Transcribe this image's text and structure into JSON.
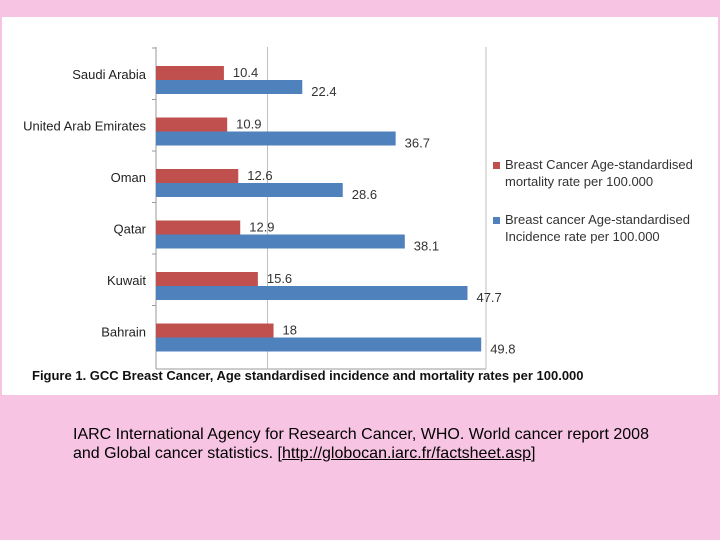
{
  "chart_data": {
    "type": "bar",
    "orientation": "horizontal",
    "categories": [
      "Saudi Arabia",
      "United Arab Emirates",
      "Oman",
      "Qatar",
      "Kuwait",
      "Bahrain"
    ],
    "series": [
      {
        "name": "Breast Cancer Age-standardised mortality rate per 100.000",
        "color": "#c0504d",
        "values": [
          10.4,
          10.9,
          12.6,
          12.9,
          15.6,
          18
        ]
      },
      {
        "name": "Breast cancer Age-standardised Incidence rate per 100.000",
        "color": "#4f81bd",
        "values": [
          22.4,
          36.7,
          28.6,
          38.1,
          47.7,
          49.8
        ]
      }
    ],
    "data_labels": {
      "mortality": [
        "10.4",
        "10.9",
        "12.6",
        "12.9",
        "15.6",
        "18"
      ],
      "incidence": [
        "22.4",
        "36.7",
        "28.6",
        "38.1",
        "47.7",
        "49.8"
      ]
    },
    "legend_lines": [
      [
        "Breast Cancer Age-standardised",
        "mortality rate per 100.000"
      ],
      [
        "Breast cancer Age-standardised",
        "Incidence rate per 100.000"
      ]
    ],
    "xlim": [
      0,
      50
    ],
    "grid": true,
    "legend_position": "right"
  },
  "caption": "Figure 1. GCC Breast Cancer, Age standardised incidence and mortality rates per 100.000",
  "reference": {
    "text": "IARC International Agency for Research Cancer, WHO. World cancer report 2008 and Global cancer statistics.",
    "link_open": "[",
    "link_text": "http://globocan.iarc.fr/factsheet.asp",
    "link_close": "]"
  }
}
